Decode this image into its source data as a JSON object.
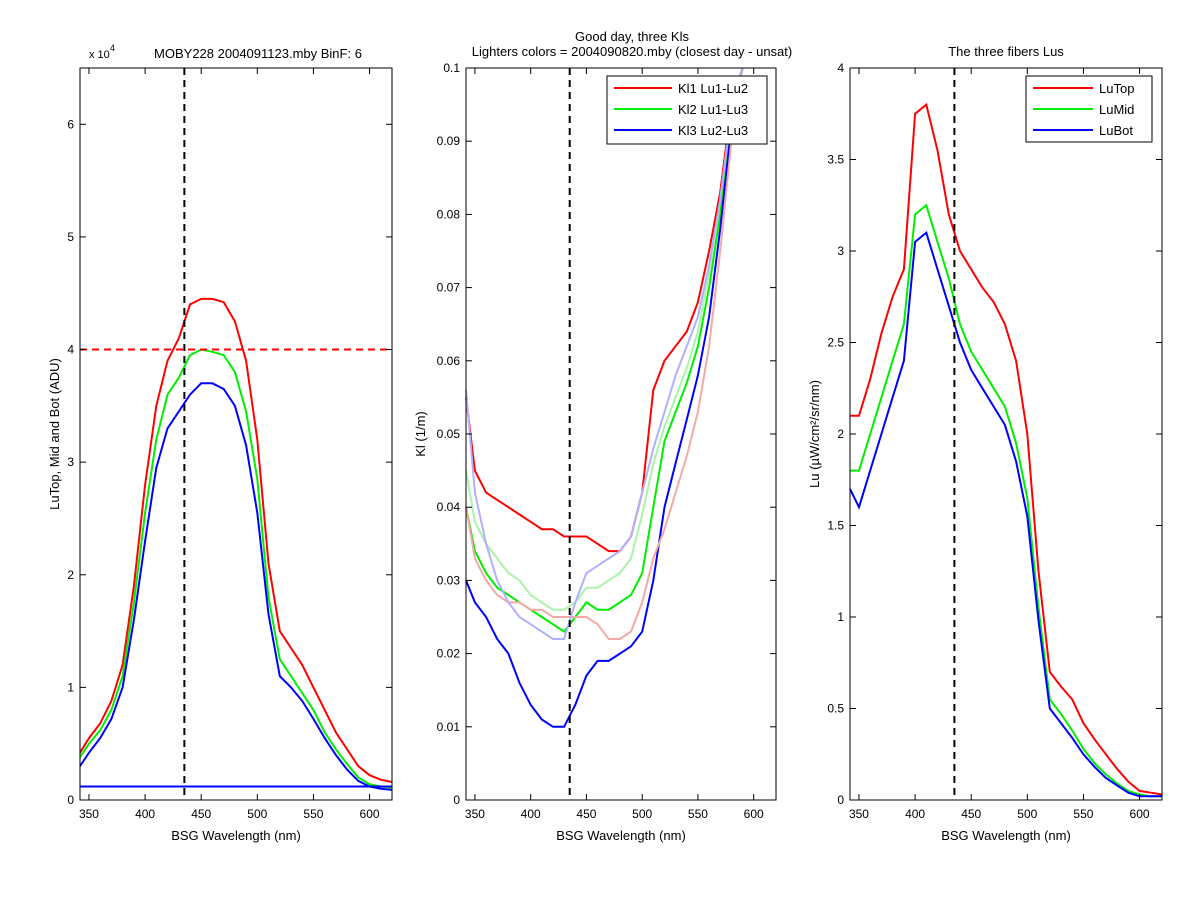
{
  "figure": {
    "suptitle_line1": "Good day, three Kls",
    "suptitle_line2": "Lighters colors = 2004090820.mby (closest day - unsat)"
  },
  "chart_data": [
    {
      "type": "line",
      "title": "MOBY228  2004091123.mby BinF: 6",
      "exponent_label": "x 10",
      "exponent_power": "4",
      "xlabel": "BSG Wavelength (nm)",
      "ylabel": "LuTop, Mid and Bot (ADU)",
      "xlim": [
        342,
        620
      ],
      "ylim": [
        0,
        6.5
      ],
      "xticks": [
        350,
        400,
        450,
        500,
        550,
        600
      ],
      "yticks": [
        0,
        1,
        2,
        3,
        4,
        5,
        6
      ],
      "legend": "none",
      "vline_x": 435,
      "hline_y": 4,
      "hline_color": "#ff0000",
      "series": [
        {
          "color": "#ff0000",
          "x": [
            342,
            350,
            360,
            370,
            380,
            390,
            400,
            410,
            420,
            430,
            440,
            450,
            460,
            470,
            480,
            490,
            500,
            510,
            520,
            530,
            540,
            550,
            560,
            570,
            580,
            590,
            600,
            610,
            620
          ],
          "y": [
            0.42,
            0.55,
            0.68,
            0.88,
            1.2,
            1.9,
            2.8,
            3.5,
            3.9,
            4.1,
            4.4,
            4.45,
            4.45,
            4.42,
            4.25,
            3.9,
            3.2,
            2.1,
            1.5,
            1.35,
            1.2,
            1.0,
            0.8,
            0.6,
            0.45,
            0.3,
            0.22,
            0.18,
            0.16
          ]
        },
        {
          "color": "#00ee00",
          "x": [
            342,
            350,
            360,
            370,
            380,
            390,
            400,
            410,
            420,
            430,
            440,
            450,
            460,
            470,
            480,
            490,
            500,
            510,
            520,
            530,
            540,
            550,
            560,
            570,
            580,
            590,
            600,
            610,
            620
          ],
          "y": [
            0.38,
            0.5,
            0.62,
            0.8,
            1.1,
            1.75,
            2.55,
            3.2,
            3.6,
            3.75,
            3.95,
            4.0,
            3.98,
            3.95,
            3.8,
            3.45,
            2.85,
            1.8,
            1.25,
            1.1,
            0.95,
            0.8,
            0.6,
            0.45,
            0.32,
            0.2,
            0.14,
            0.12,
            0.11
          ]
        },
        {
          "color": "#0000ff",
          "x": [
            342,
            350,
            360,
            370,
            380,
            390,
            400,
            410,
            420,
            430,
            440,
            450,
            460,
            470,
            480,
            490,
            500,
            510,
            520,
            530,
            540,
            550,
            560,
            570,
            580,
            590,
            600,
            610,
            620
          ],
          "y": [
            0.3,
            0.42,
            0.55,
            0.72,
            1.0,
            1.6,
            2.3,
            2.95,
            3.3,
            3.45,
            3.6,
            3.7,
            3.7,
            3.65,
            3.5,
            3.15,
            2.55,
            1.65,
            1.1,
            1.0,
            0.88,
            0.72,
            0.55,
            0.4,
            0.27,
            0.17,
            0.12,
            0.1,
            0.09
          ]
        },
        {
          "color": "#0000ff",
          "x": [
            342,
            620
          ],
          "y": [
            0.12,
            0.12
          ]
        }
      ]
    },
    {
      "type": "line",
      "title": "",
      "xlabel": "BSG Wavelength (nm)",
      "ylabel": "Kl (1/m)",
      "xlim": [
        342,
        620
      ],
      "ylim": [
        0,
        0.1
      ],
      "xticks": [
        350,
        400,
        450,
        500,
        550,
        600
      ],
      "yticks": [
        0,
        0.01,
        0.02,
        0.03,
        0.04,
        0.05,
        0.06,
        0.07,
        0.08,
        0.09,
        0.1
      ],
      "legend": "top-right",
      "vline_x": 435,
      "series": [
        {
          "name": "Kl1 Lu1-Lu2",
          "color": "#ff0000",
          "x": [
            342,
            350,
            360,
            370,
            380,
            390,
            400,
            410,
            420,
            430,
            440,
            450,
            460,
            470,
            480,
            490,
            500,
            510,
            520,
            530,
            540,
            550,
            560,
            570,
            580,
            590
          ],
          "y": [
            0.055,
            0.045,
            0.042,
            0.041,
            0.04,
            0.039,
            0.038,
            0.037,
            0.037,
            0.036,
            0.036,
            0.036,
            0.035,
            0.034,
            0.034,
            0.036,
            0.042,
            0.056,
            0.06,
            0.062,
            0.064,
            0.068,
            0.075,
            0.083,
            0.095,
            0.105
          ]
        },
        {
          "name": "Kl2 Lu1-Lu3",
          "color": "#00ee00",
          "x": [
            342,
            350,
            360,
            370,
            380,
            390,
            400,
            410,
            420,
            430,
            440,
            450,
            460,
            470,
            480,
            490,
            500,
            510,
            520,
            530,
            540,
            550,
            560,
            570,
            580,
            590
          ],
          "y": [
            0.04,
            0.034,
            0.031,
            0.029,
            0.028,
            0.027,
            0.026,
            0.025,
            0.024,
            0.023,
            0.025,
            0.027,
            0.026,
            0.026,
            0.027,
            0.028,
            0.031,
            0.04,
            0.049,
            0.053,
            0.057,
            0.062,
            0.07,
            0.08,
            0.093,
            0.105
          ]
        },
        {
          "name": "Kl3 Lu2-Lu3",
          "color": "#0000ff",
          "x": [
            342,
            350,
            360,
            370,
            380,
            390,
            400,
            410,
            420,
            430,
            440,
            450,
            460,
            470,
            480,
            490,
            500,
            510,
            520,
            530,
            540,
            550,
            560,
            570,
            580,
            590
          ],
          "y": [
            0.03,
            0.027,
            0.025,
            0.022,
            0.02,
            0.016,
            0.013,
            0.011,
            0.01,
            0.01,
            0.013,
            0.017,
            0.019,
            0.019,
            0.02,
            0.021,
            0.023,
            0.03,
            0.04,
            0.046,
            0.052,
            0.058,
            0.066,
            0.078,
            0.092,
            0.105
          ]
        },
        {
          "color": "#f4a8a8",
          "x": [
            342,
            350,
            360,
            370,
            380,
            390,
            400,
            410,
            420,
            430,
            440,
            450,
            460,
            470,
            480,
            490,
            500,
            510,
            520,
            530,
            540,
            550,
            560,
            570,
            580,
            590
          ],
          "y": [
            0.04,
            0.033,
            0.03,
            0.028,
            0.027,
            0.027,
            0.026,
            0.026,
            0.025,
            0.025,
            0.025,
            0.025,
            0.024,
            0.022,
            0.022,
            0.023,
            0.027,
            0.033,
            0.037,
            0.042,
            0.047,
            0.053,
            0.062,
            0.075,
            0.09,
            0.105
          ]
        },
        {
          "color": "#a9f4a9",
          "x": [
            342,
            350,
            360,
            370,
            380,
            390,
            400,
            410,
            420,
            430,
            440,
            450,
            460,
            470,
            480,
            490,
            500,
            510,
            520,
            530,
            540,
            550,
            560,
            570,
            580,
            590
          ],
          "y": [
            0.045,
            0.038,
            0.035,
            0.033,
            0.031,
            0.03,
            0.028,
            0.027,
            0.026,
            0.026,
            0.027,
            0.029,
            0.029,
            0.03,
            0.031,
            0.033,
            0.039,
            0.046,
            0.051,
            0.055,
            0.059,
            0.064,
            0.072,
            0.082,
            0.094,
            0.105
          ]
        },
        {
          "color": "#b0b0ff",
          "x": [
            342,
            350,
            360,
            370,
            380,
            390,
            400,
            410,
            420,
            430,
            440,
            450,
            460,
            470,
            480,
            490,
            500,
            510,
            520,
            530,
            540,
            550,
            560,
            570,
            580,
            590
          ],
          "y": [
            0.056,
            0.042,
            0.035,
            0.03,
            0.027,
            0.025,
            0.024,
            0.023,
            0.022,
            0.022,
            0.027,
            0.031,
            0.032,
            0.033,
            0.034,
            0.036,
            0.042,
            0.048,
            0.053,
            0.058,
            0.062,
            0.066,
            0.073,
            0.082,
            0.094,
            0.105
          ]
        }
      ]
    },
    {
      "type": "line",
      "title": "The three fibers Lus",
      "xlabel": "BSG Wavelength (nm)",
      "ylabel": "Lu (µW/cm²/sr/nm)",
      "xlim": [
        342,
        620
      ],
      "ylim": [
        0,
        4
      ],
      "xticks": [
        350,
        400,
        450,
        500,
        550,
        600
      ],
      "yticks": [
        0,
        0.5,
        1,
        1.5,
        2,
        2.5,
        3,
        3.5,
        4
      ],
      "legend": "top-right",
      "vline_x": 435,
      "series": [
        {
          "name": "LuTop",
          "color": "#ff0000",
          "x": [
            342,
            350,
            360,
            370,
            380,
            390,
            400,
            410,
            420,
            430,
            440,
            450,
            460,
            470,
            480,
            490,
            500,
            510,
            520,
            530,
            540,
            550,
            560,
            570,
            580,
            590,
            600,
            610,
            620
          ],
          "y": [
            2.1,
            2.1,
            2.3,
            2.55,
            2.75,
            2.9,
            3.75,
            3.8,
            3.55,
            3.2,
            3.0,
            2.9,
            2.8,
            2.72,
            2.6,
            2.4,
            2.0,
            1.25,
            0.7,
            0.62,
            0.55,
            0.42,
            0.33,
            0.25,
            0.17,
            0.1,
            0.05,
            0.04,
            0.03
          ]
        },
        {
          "name": "LuMid",
          "color": "#00ee00",
          "x": [
            342,
            350,
            360,
            370,
            380,
            390,
            400,
            410,
            420,
            430,
            440,
            450,
            460,
            470,
            480,
            490,
            500,
            510,
            520,
            530,
            540,
            550,
            560,
            570,
            580,
            590,
            600,
            610,
            620
          ],
          "y": [
            1.8,
            1.8,
            2.0,
            2.2,
            2.4,
            2.6,
            3.2,
            3.25,
            3.05,
            2.85,
            2.6,
            2.45,
            2.35,
            2.25,
            2.15,
            1.95,
            1.65,
            1.05,
            0.55,
            0.47,
            0.38,
            0.28,
            0.2,
            0.14,
            0.09,
            0.05,
            0.03,
            0.02,
            0.02
          ]
        },
        {
          "name": "LuBot",
          "color": "#0000ff",
          "x": [
            342,
            350,
            360,
            370,
            380,
            390,
            400,
            410,
            420,
            430,
            440,
            450,
            460,
            470,
            480,
            490,
            500,
            510,
            520,
            530,
            540,
            550,
            560,
            570,
            580,
            590,
            600,
            610,
            620
          ],
          "y": [
            1.7,
            1.6,
            1.8,
            2.0,
            2.2,
            2.4,
            3.05,
            3.1,
            2.9,
            2.7,
            2.5,
            2.35,
            2.25,
            2.15,
            2.05,
            1.85,
            1.55,
            0.98,
            0.5,
            0.42,
            0.34,
            0.25,
            0.18,
            0.12,
            0.08,
            0.04,
            0.02,
            0.02,
            0.02
          ]
        }
      ]
    }
  ]
}
